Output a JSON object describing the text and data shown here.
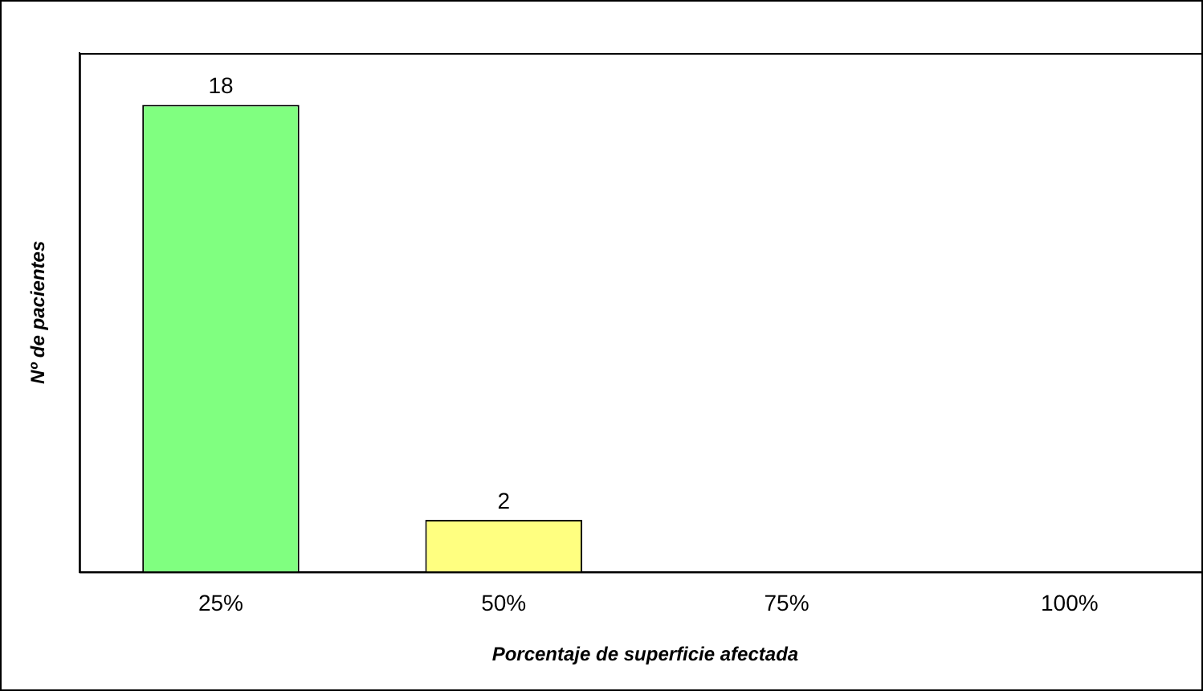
{
  "chart_data": {
    "type": "bar",
    "xlabel": "Porcentaje de superficie afectada",
    "ylabel": "Nº de pacientes",
    "categories": [
      "25%",
      "50%",
      "75%",
      "100%"
    ],
    "values": [
      18,
      2,
      0,
      0
    ],
    "value_labels": [
      "18",
      "2",
      null,
      null
    ],
    "colors": [
      "#80ff80",
      "#ffff80",
      "#80ff80",
      "#80ff80"
    ],
    "ylim": [
      0,
      20
    ],
    "grid": false,
    "legend": false
  }
}
